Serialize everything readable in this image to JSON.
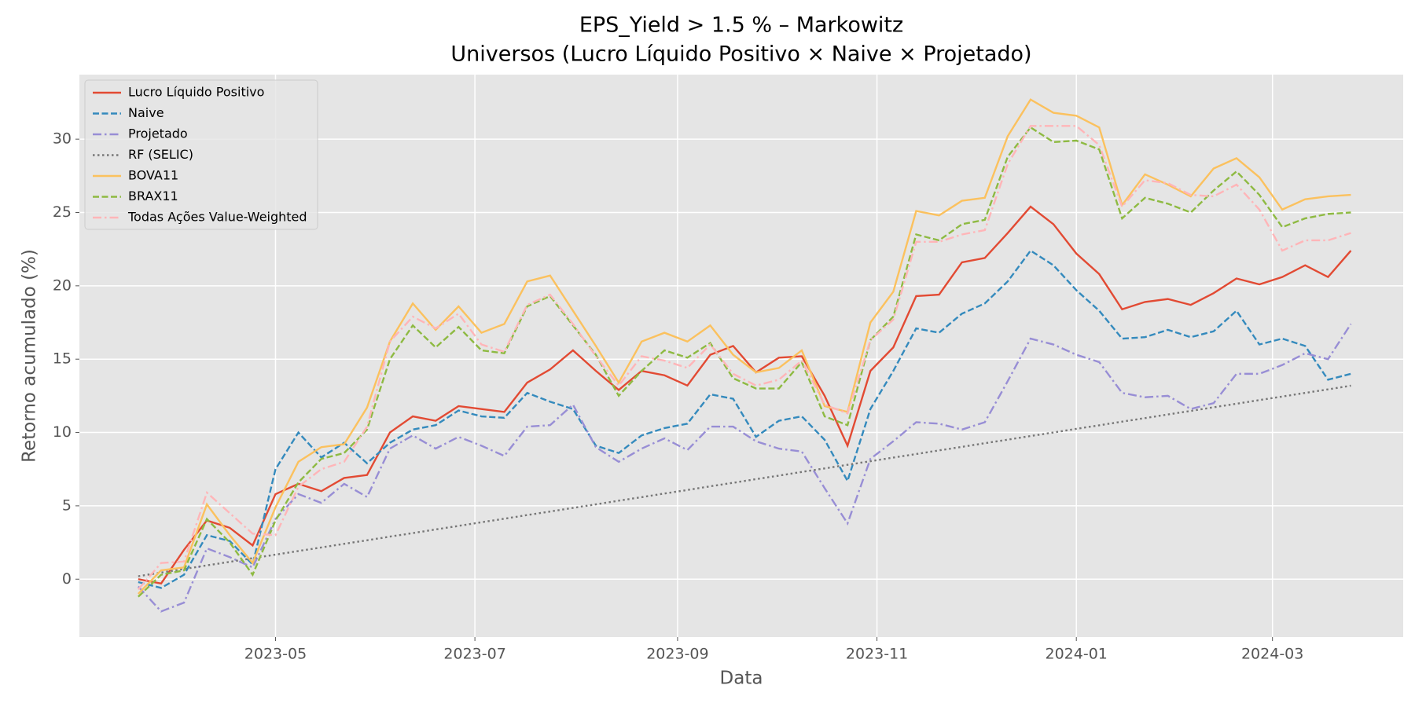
{
  "chart_data": {
    "type": "line",
    "title": "EPS_Yield > 1.5 % – Markowitz",
    "subtitle": "Universos (Lucro Líquido Positivo × Naive × Projetado)",
    "xlabel": "Data",
    "ylabel": "Retorno acumulado (%)",
    "x": [
      "2023-03-20",
      "2023-03-27",
      "2023-04-03",
      "2023-04-10",
      "2023-04-17",
      "2023-04-24",
      "2023-05-01",
      "2023-05-08",
      "2023-05-15",
      "2023-05-22",
      "2023-05-29",
      "2023-06-05",
      "2023-06-12",
      "2023-06-19",
      "2023-06-26",
      "2023-07-03",
      "2023-07-10",
      "2023-07-17",
      "2023-07-24",
      "2023-07-31",
      "2023-08-07",
      "2023-08-14",
      "2023-08-21",
      "2023-08-28",
      "2023-09-04",
      "2023-09-11",
      "2023-09-18",
      "2023-09-25",
      "2023-10-02",
      "2023-10-09",
      "2023-10-16",
      "2023-10-23",
      "2023-10-30",
      "2023-11-06",
      "2023-11-13",
      "2023-11-20",
      "2023-11-27",
      "2023-12-04",
      "2023-12-11",
      "2023-12-18",
      "2023-12-25",
      "2024-01-01",
      "2024-01-08",
      "2024-01-15",
      "2024-01-22",
      "2024-01-29",
      "2024-02-05",
      "2024-02-12",
      "2024-02-19",
      "2024-02-26",
      "2024-03-04",
      "2024-03-11",
      "2024-03-18",
      "2024-03-25"
    ],
    "series": [
      {
        "name": "Lucro Líquido Positivo",
        "color": "#E24A33",
        "linestyle": "solid",
        "values": [
          0,
          -0.3,
          2,
          4,
          3.5,
          2.3,
          5.8,
          6.5,
          6,
          6.9,
          7.1,
          10,
          11.1,
          10.8,
          11.8,
          11.6,
          11.4,
          13.4,
          14.3,
          15.6,
          14.2,
          12.9,
          14.2,
          13.9,
          13.2,
          15.3,
          15.9,
          14.1,
          15.1,
          15.2,
          12.5,
          9.1,
          14.2,
          15.8,
          19.3,
          19.4,
          21.6,
          21.9,
          23.6,
          25.4,
          24.2,
          22.2,
          20.8,
          18.4,
          18.9,
          19.1,
          18.7,
          19.5,
          20.5,
          20.1,
          20.6,
          21.4,
          20.6,
          22.4
        ]
      },
      {
        "name": "Naive",
        "color": "#348ABD",
        "linestyle": "dashed",
        "values": [
          -0.2,
          -0.6,
          0.3,
          3.0,
          2.6,
          1.0,
          7.5,
          10,
          8.3,
          9.3,
          7.9,
          9.3,
          10.2,
          10.5,
          11.5,
          11.1,
          11.0,
          12.7,
          12.1,
          11.6,
          9.1,
          8.6,
          9.8,
          10.3,
          10.6,
          12.6,
          12.3,
          9.7,
          10.8,
          11.1,
          9.5,
          6.7,
          11.6,
          14.2,
          17.1,
          16.8,
          18.1,
          18.8,
          20.3,
          22.4,
          21.4,
          19.7,
          18.3,
          16.4,
          16.5,
          17.0,
          16.5,
          16.9,
          18.3,
          16.0,
          16.4,
          15.9,
          13.6,
          14.0
        ]
      },
      {
        "name": "Projetado",
        "color": "#988ED5",
        "linestyle": "dashdot",
        "values": [
          -0.5,
          -2.2,
          -1.6,
          2.1,
          1.5,
          0.8,
          4.1,
          5.8,
          5.2,
          6.5,
          5.6,
          8.9,
          9.8,
          8.9,
          9.7,
          9.1,
          8.4,
          10.4,
          10.5,
          11.9,
          9.0,
          8.0,
          8.9,
          9.6,
          8.8,
          10.4,
          10.4,
          9.4,
          8.9,
          8.7,
          6.2,
          3.8,
          8.2,
          9.4,
          10.7,
          10.6,
          10.2,
          10.7,
          13.5,
          16.4,
          16.0,
          15.3,
          14.8,
          12.7,
          12.4,
          12.5,
          11.6,
          12.0,
          14.0,
          14.0,
          14.6,
          15.4,
          15.0,
          17.4
        ]
      },
      {
        "name": "RF (SELIC)",
        "color": "#777777",
        "linestyle": "dotted",
        "values": [
          0.2,
          0.45,
          0.69,
          0.94,
          1.18,
          1.43,
          1.67,
          1.92,
          2.16,
          2.41,
          2.65,
          2.9,
          3.14,
          3.39,
          3.63,
          3.88,
          4.12,
          4.37,
          4.61,
          4.86,
          5.1,
          5.35,
          5.59,
          5.84,
          6.08,
          6.33,
          6.57,
          6.82,
          7.06,
          7.31,
          7.55,
          7.8,
          8.04,
          8.29,
          8.53,
          8.78,
          9.02,
          9.27,
          9.51,
          9.76,
          10.0,
          10.25,
          10.49,
          10.74,
          10.98,
          11.23,
          11.47,
          11.72,
          11.96,
          12.21,
          12.45,
          12.7,
          12.94,
          13.19
        ]
      },
      {
        "name": "BOVA11",
        "color": "#FBC15E",
        "linestyle": "solid",
        "values": [
          -1.0,
          0.6,
          0.8,
          5.1,
          3.0,
          1.1,
          4.9,
          8.0,
          9.0,
          9.2,
          11.7,
          16.2,
          18.8,
          17.0,
          18.6,
          16.8,
          17.4,
          20.3,
          20.7,
          18.3,
          15.9,
          13.4,
          16.2,
          16.8,
          16.2,
          17.3,
          15.3,
          14.1,
          14.4,
          15.6,
          11.8,
          11.4,
          17.5,
          19.6,
          25.1,
          24.8,
          25.8,
          26.0,
          30.2,
          32.7,
          31.8,
          31.6,
          30.8,
          25.5,
          27.6,
          26.9,
          26.1,
          28.0,
          28.7,
          27.4,
          25.2,
          25.9,
          26.1,
          26.2
        ]
      },
      {
        "name": "BRAX11",
        "color": "#8EBA42",
        "linestyle": "dashed",
        "values": [
          -1.2,
          0.3,
          0.6,
          4.1,
          2.5,
          0.3,
          4.0,
          6.6,
          8.2,
          8.6,
          10.2,
          15.0,
          17.3,
          15.8,
          17.2,
          15.6,
          15.4,
          18.6,
          19.3,
          17.3,
          15.3,
          12.5,
          14.2,
          15.6,
          15.1,
          16.1,
          13.7,
          13.0,
          13.0,
          14.8,
          11.1,
          10.5,
          16.3,
          17.9,
          23.5,
          23.1,
          24.2,
          24.5,
          28.8,
          30.8,
          29.8,
          29.9,
          29.3,
          24.6,
          26.0,
          25.6,
          25.0,
          26.5,
          27.8,
          26.2,
          24.0,
          24.6,
          24.9,
          25.0
        ]
      },
      {
        "name": "Todas Ações Value-Weighted",
        "color": "#FFB5B8",
        "linestyle": "dashdot",
        "values": [
          -0.7,
          1.1,
          1.2,
          5.9,
          4.5,
          3.1,
          3.0,
          6.3,
          7.5,
          8.0,
          10.4,
          16.2,
          17.9,
          17.1,
          18.1,
          16.0,
          15.5,
          18.7,
          19.4,
          17.4,
          15.2,
          13.2,
          15.2,
          14.9,
          14.4,
          16.0,
          14.0,
          13.2,
          13.6,
          14.9,
          11.9,
          11.3,
          16.3,
          17.7,
          23.0,
          23.0,
          23.5,
          23.8,
          28.3,
          30.9,
          30.9,
          30.9,
          29.6,
          25.4,
          27.2,
          27.0,
          26.2,
          26.1,
          26.9,
          25.2,
          22.4,
          23.1,
          23.1,
          23.6
        ]
      }
    ],
    "xlim": [
      "2023-03-02",
      "2024-04-10"
    ],
    "xticks": [
      {
        "value": "2023-05-01",
        "label": "2023-05"
      },
      {
        "value": "2023-07-01",
        "label": "2023-07"
      },
      {
        "value": "2023-09-01",
        "label": "2023-09"
      },
      {
        "value": "2023-11-01",
        "label": "2023-11"
      },
      {
        "value": "2024-01-01",
        "label": "2024-01"
      },
      {
        "value": "2024-03-01",
        "label": "2024-03"
      }
    ],
    "ylim": [
      -3.95,
      34.4
    ],
    "yticks": [
      0,
      5,
      10,
      15,
      20,
      25,
      30
    ],
    "grid": true,
    "legend": "upper left"
  }
}
